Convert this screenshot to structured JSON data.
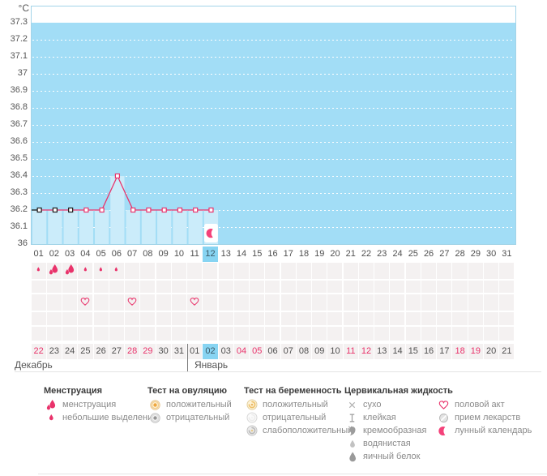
{
  "colors": {
    "accent_pink": "#e9336b",
    "plot_bg": "#a2ddf6",
    "bar_fill": "#cbecfa",
    "plot_border": "#a3d4e8",
    "selected_day_bg": "#87d4f2",
    "grid_cell_bg": "#f4f1f1",
    "marker_black": "#1a1a1a",
    "grid_dotted": "#ffffff"
  },
  "chart_data": {
    "type": "line",
    "ylabel": "°C",
    "ylim": [
      36.0,
      37.4
    ],
    "yticks": [
      "37.3",
      "37.2",
      "37.1",
      "37",
      "36.9",
      "36.8",
      "36.7",
      "36.6",
      "36.5",
      "36.4",
      "36.3",
      "36.2",
      "36.1",
      "36"
    ],
    "x_days": [
      "01",
      "02",
      "03",
      "04",
      "05",
      "06",
      "07",
      "08",
      "09",
      "10",
      "11",
      "12",
      "13",
      "14",
      "15",
      "16",
      "17",
      "18",
      "19",
      "20",
      "21",
      "22",
      "23",
      "24",
      "25",
      "26",
      "27",
      "28",
      "29",
      "30",
      "31"
    ],
    "selected_day": 12,
    "series": [
      {
        "x": [
          1,
          2,
          3,
          4,
          5,
          6,
          7,
          8,
          9,
          10,
          11,
          12
        ],
        "values": [
          36.2,
          36.2,
          36.2,
          36.2,
          36.2,
          36.4,
          36.2,
          36.2,
          36.2,
          36.2,
          36.2,
          36.2
        ],
        "marker_outline": [
          "black",
          "black",
          "black",
          "pink",
          "pink",
          "pink",
          "pink",
          "pink",
          "pink",
          "pink",
          "pink",
          "pink"
        ]
      }
    ],
    "grid": "horizontal dotted white lines every 0.1°C",
    "legend_position": "bottom"
  },
  "events": {
    "menstruation_heavy_days": [
      2,
      3
    ],
    "menstruation_light_days": [
      1,
      4,
      5,
      6
    ],
    "intercourse_days": [
      4,
      7,
      11
    ],
    "lunar_calendar_day": 12
  },
  "calendar": {
    "dates": [
      "22",
      "23",
      "24",
      "25",
      "26",
      "27",
      "28",
      "29",
      "30",
      "31",
      "01",
      "02",
      "03",
      "04",
      "05",
      "06",
      "07",
      "08",
      "09",
      "10",
      "11",
      "12",
      "13",
      "14",
      "15",
      "16",
      "17",
      "18",
      "19",
      "20",
      "21"
    ],
    "weekend_indices": [
      0,
      6,
      7,
      13,
      14,
      20,
      21,
      27,
      28
    ],
    "selected_index": 11,
    "month_labels": [
      "Декабрь",
      "Январь"
    ],
    "month_split_after_index": 9
  },
  "legend": {
    "groups": [
      {
        "title": "Менструация",
        "items": [
          {
            "icon": "drops-heavy",
            "label": "менструация"
          },
          {
            "icon": "drop-light",
            "label": "небольшие выделения"
          }
        ]
      },
      {
        "title": "Тест на овуляцию",
        "items": [
          {
            "icon": "test-positive",
            "label": "положительный"
          },
          {
            "icon": "test-negative",
            "label": "отрицательный"
          }
        ]
      },
      {
        "title": "Тест на беременность",
        "items": [
          {
            "icon": "preg-positive",
            "label": "положительный"
          },
          {
            "icon": "preg-negative",
            "label": "отрицательный"
          },
          {
            "icon": "preg-weak",
            "label": "слабоположительный"
          }
        ]
      },
      {
        "title": "Цервикальная жидкость",
        "items": [
          {
            "icon": "dry",
            "label": "сухо"
          },
          {
            "icon": "sticky",
            "label": "клейкая"
          },
          {
            "icon": "creamy",
            "label": "кремообразная"
          },
          {
            "icon": "watery",
            "label": "водянистая"
          },
          {
            "icon": "eggwhite",
            "label": "яичный белок"
          }
        ]
      },
      {
        "title": "",
        "items": [
          {
            "icon": "heart",
            "label": "половой акт"
          },
          {
            "icon": "pill",
            "label": "прием лекарств"
          },
          {
            "icon": "moon",
            "label": "лунный календарь"
          }
        ]
      }
    ]
  }
}
